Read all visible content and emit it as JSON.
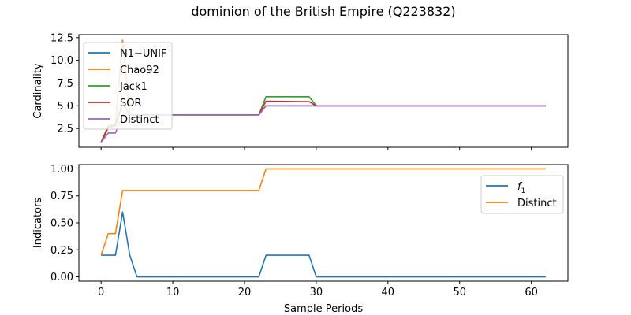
{
  "title": "dominion of the British Empire (Q223832)",
  "chart_data": [
    {
      "type": "line",
      "xlabel": "",
      "ylabel": "Cardinality",
      "xlim": [
        -3.1,
        65.1
      ],
      "ylim": [
        0.43,
        12.83
      ],
      "xticks": [
        0,
        10,
        20,
        30,
        40,
        50,
        60
      ],
      "xtick_labels_visible": false,
      "yticks": [
        2.5,
        5.0,
        7.5,
        10.0,
        12.5
      ],
      "ytick_labels": [
        "2.5",
        "5.0",
        "7.5",
        "10.0",
        "12.5"
      ],
      "grid": false,
      "legend_position": "upper-left",
      "series": [
        {
          "name": "N1−UNIF",
          "color": "#1f77b4",
          "points": [
            [
              0,
              1
            ],
            [
              1,
              2.6
            ],
            [
              2,
              3.0
            ],
            [
              3,
              12.2
            ],
            [
              4,
              4
            ],
            [
              5,
              4
            ],
            [
              22,
              4
            ],
            [
              23,
              5
            ],
            [
              29,
              5
            ],
            [
              30,
              5
            ],
            [
              62,
              5
            ]
          ]
        },
        {
          "name": "Chao92",
          "color": "#ff7f0e",
          "points": [
            [
              0,
              1
            ],
            [
              1,
              2.6
            ],
            [
              2,
              3.0
            ],
            [
              3,
              12.2
            ],
            [
              4,
              4
            ],
            [
              5,
              4
            ],
            [
              22,
              4
            ],
            [
              23,
              5
            ],
            [
              29,
              5
            ],
            [
              30,
              5
            ],
            [
              62,
              5
            ]
          ]
        },
        {
          "name": "Jack1",
          "color": "#2ca02c",
          "points": [
            [
              0,
              1
            ],
            [
              1,
              2.8
            ],
            [
              2,
              3.0
            ],
            [
              3,
              5.2
            ],
            [
              4,
              4
            ],
            [
              5,
              4
            ],
            [
              22,
              4
            ],
            [
              23,
              6
            ],
            [
              29,
              6
            ],
            [
              30,
              5
            ],
            [
              62,
              5
            ]
          ]
        },
        {
          "name": "SOR",
          "color": "#d62728",
          "points": [
            [
              0,
              1
            ],
            [
              1,
              2.6
            ],
            [
              2,
              2.8
            ],
            [
              3,
              5.2
            ],
            [
              4,
              4
            ],
            [
              5,
              4
            ],
            [
              22,
              4
            ],
            [
              23,
              5.5
            ],
            [
              29,
              5.45
            ],
            [
              30,
              5
            ],
            [
              62,
              5
            ]
          ]
        },
        {
          "name": "Distinct",
          "color": "#9467bd",
          "points": [
            [
              0,
              1
            ],
            [
              1,
              2
            ],
            [
              2,
              2
            ],
            [
              3,
              4
            ],
            [
              4,
              4
            ],
            [
              5,
              4
            ],
            [
              22,
              4
            ],
            [
              23,
              5
            ],
            [
              29,
              5
            ],
            [
              30,
              5
            ],
            [
              62,
              5
            ]
          ]
        }
      ]
    },
    {
      "type": "line",
      "xlabel": "Sample Periods",
      "ylabel": "Indicators",
      "xlim": [
        -3.1,
        65.1
      ],
      "ylim": [
        -0.04,
        1.04
      ],
      "xticks": [
        0,
        10,
        20,
        30,
        40,
        50,
        60
      ],
      "xtick_labels": [
        "0",
        "10",
        "20",
        "30",
        "40",
        "50",
        "60"
      ],
      "yticks": [
        0.0,
        0.25,
        0.5,
        0.75,
        1.0
      ],
      "ytick_labels": [
        "0.00",
        "0.25",
        "0.50",
        "0.75",
        "1.00"
      ],
      "grid": false,
      "legend_position": "upper-right",
      "series": [
        {
          "name": "f1",
          "legend_base": "f",
          "legend_sub": "1",
          "color": "#1f77b4",
          "points": [
            [
              0,
              0.2
            ],
            [
              1,
              0.2
            ],
            [
              2,
              0.2
            ],
            [
              3,
              0.6
            ],
            [
              4,
              0.2
            ],
            [
              5,
              0
            ],
            [
              22,
              0
            ],
            [
              23,
              0.2
            ],
            [
              29,
              0.2
            ],
            [
              30,
              0
            ],
            [
              62,
              0
            ]
          ]
        },
        {
          "name": "Distinct",
          "color": "#ff7f0e",
          "points": [
            [
              0,
              0.2
            ],
            [
              1,
              0.4
            ],
            [
              2,
              0.4
            ],
            [
              3,
              0.8
            ],
            [
              4,
              0.8
            ],
            [
              22,
              0.8
            ],
            [
              23,
              1.0
            ],
            [
              62,
              1.0
            ]
          ]
        }
      ]
    }
  ]
}
